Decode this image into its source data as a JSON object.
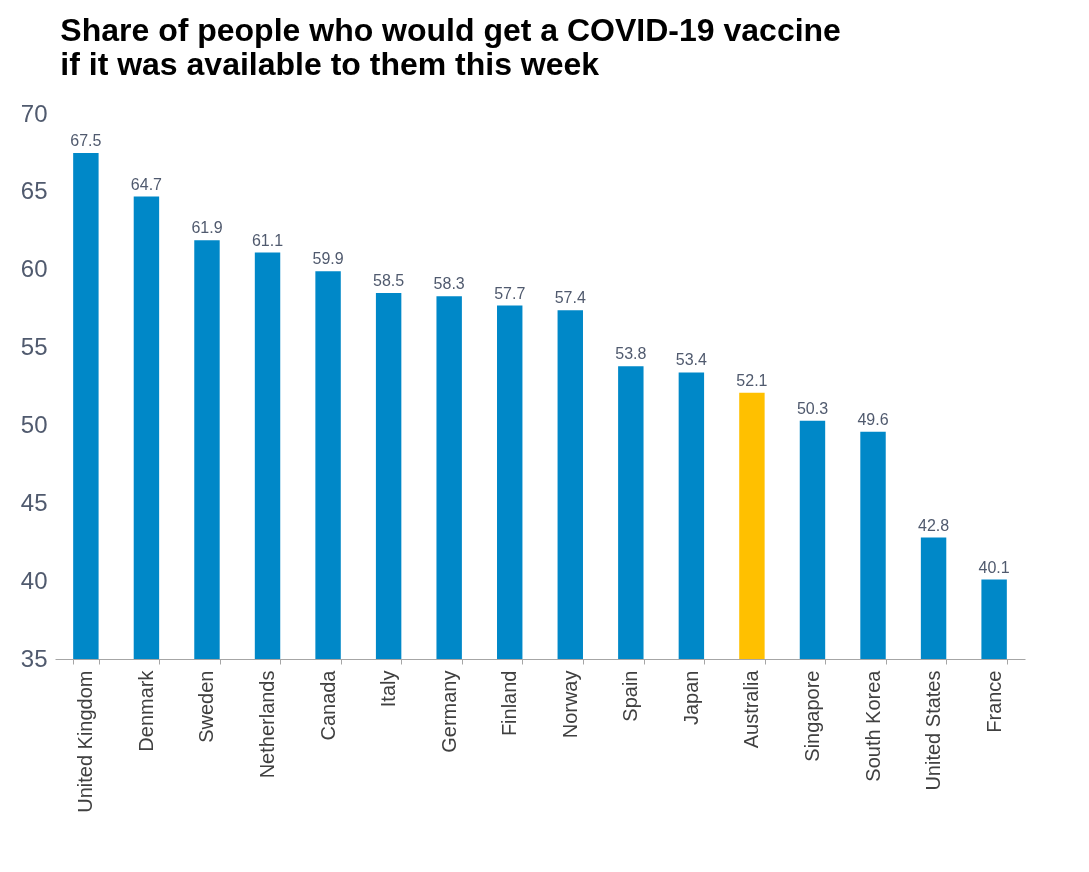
{
  "chart_data": {
    "type": "bar",
    "title": "Share of people who would get a COVID-19 vaccine\nif it was available to them this week",
    "categories": [
      "United Kingdom",
      "Denmark",
      "Sweden",
      "Netherlands",
      "Canada",
      "Italy",
      "Germany",
      "Finland",
      "Norway",
      "Spain",
      "Japan",
      "Australia",
      "Singapore",
      "South Korea",
      "United States",
      "France"
    ],
    "values": [
      67.5,
      64.7,
      61.9,
      61.1,
      59.9,
      58.5,
      58.3,
      57.7,
      57.4,
      53.8,
      53.4,
      52.1,
      50.3,
      49.6,
      42.8,
      40.1
    ],
    "colors": [
      "#0088c8",
      "#0088c8",
      "#0088c8",
      "#0088c8",
      "#0088c8",
      "#0088c8",
      "#0088c8",
      "#0088c8",
      "#0088c8",
      "#0088c8",
      "#0088c8",
      "#ffc000",
      "#0088c8",
      "#0088c8",
      "#0088c8",
      "#0088c8"
    ],
    "ylim": [
      35,
      70
    ],
    "yticks": [
      35,
      40,
      45,
      50,
      55,
      60,
      65,
      70
    ],
    "data_labels": true,
    "grid": false
  }
}
